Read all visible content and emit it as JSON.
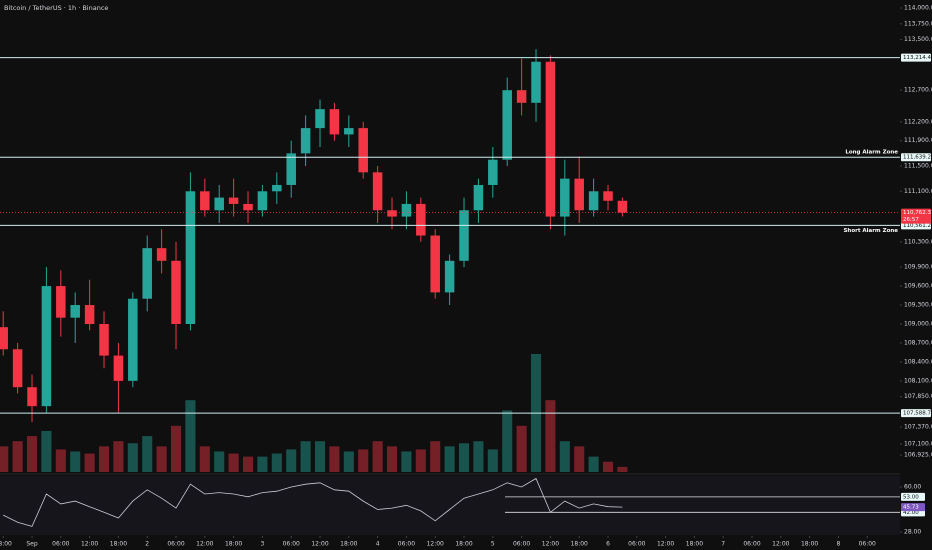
{
  "header": {
    "title": "Bitcoin / TetherUS · 1h · Binance"
  },
  "chart_data": {
    "type": "candlestick",
    "x": [
      -6,
      -3,
      0,
      3,
      6,
      9,
      12,
      15,
      18,
      21,
      24,
      27,
      30,
      33,
      36,
      39,
      42,
      45,
      48,
      51,
      54,
      57,
      60,
      63,
      66,
      69,
      72,
      75,
      78,
      81,
      84,
      87,
      90,
      93,
      96,
      99,
      102,
      105,
      108,
      111,
      114,
      117,
      120,
      123
    ],
    "open": [
      108950,
      108600,
      108000,
      107700,
      109600,
      109100,
      109300,
      109000,
      108500,
      108100,
      109400,
      110200,
      110000,
      109000,
      111100,
      110800,
      111000,
      110900,
      110800,
      111100,
      111200,
      111700,
      112100,
      112400,
      112000,
      112100,
      111400,
      110800,
      110700,
      110900,
      110400,
      109500,
      110000,
      110800,
      111200,
      111600,
      112700,
      112500,
      113150,
      110700,
      111300,
      110800,
      111100,
      110950
    ],
    "high": [
      109200,
      108700,
      108200,
      109900,
      109850,
      109500,
      109700,
      109200,
      108700,
      109500,
      110400,
      110500,
      110300,
      111400,
      111300,
      111200,
      111300,
      111100,
      111200,
      111400,
      111900,
      112300,
      112550,
      112500,
      112300,
      112200,
      111500,
      111000,
      111100,
      111000,
      110500,
      110100,
      111000,
      111300,
      111800,
      112900,
      113200,
      113350,
      113250,
      111600,
      111650,
      111300,
      111200,
      111000
    ],
    "low": [
      108500,
      107900,
      107450,
      107600,
      108800,
      108700,
      108900,
      108300,
      107600,
      108000,
      109200,
      109800,
      108600,
      108900,
      110700,
      110600,
      110700,
      110600,
      110700,
      110900,
      111000,
      111500,
      111800,
      111900,
      111800,
      111300,
      110600,
      110500,
      110500,
      110300,
      109400,
      109300,
      109900,
      110600,
      111000,
      111500,
      112300,
      112200,
      110500,
      110400,
      110600,
      110700,
      110800,
      110700
    ],
    "close": [
      108600,
      108000,
      107700,
      109600,
      109100,
      109300,
      109000,
      108500,
      108100,
      109400,
      110200,
      110000,
      109000,
      111100,
      110800,
      111000,
      110900,
      110800,
      111100,
      111200,
      111700,
      112100,
      112400,
      112000,
      112100,
      111400,
      110800,
      110700,
      110900,
      110400,
      109500,
      110000,
      110800,
      111200,
      111600,
      112700,
      112500,
      113150,
      110700,
      111300,
      110800,
      111100,
      110950,
      110762.31
    ],
    "volume": [
      25,
      30,
      35,
      40,
      22,
      20,
      18,
      25,
      30,
      28,
      35,
      25,
      45,
      70,
      25,
      20,
      18,
      15,
      15,
      18,
      22,
      30,
      30,
      25,
      20,
      22,
      30,
      25,
      20,
      22,
      30,
      25,
      28,
      30,
      22,
      60,
      45,
      115,
      70,
      30,
      25,
      15,
      10,
      5
    ],
    "up_color": "#26a69a",
    "down_color": "#f23645",
    "xlim": [
      -6.67,
      180.83
    ],
    "xticks": [
      {
        "value": -6,
        "label": "18:00"
      },
      {
        "value": 0,
        "label": "Sep"
      },
      {
        "value": 6,
        "label": "06:00"
      },
      {
        "value": 12,
        "label": "12:00"
      },
      {
        "value": 18,
        "label": "18:00"
      },
      {
        "value": 24,
        "label": "2"
      },
      {
        "value": 30,
        "label": "06:00"
      },
      {
        "value": 36,
        "label": "12:00"
      },
      {
        "value": 42,
        "label": "18:00"
      },
      {
        "value": 48,
        "label": "3"
      },
      {
        "value": 54,
        "label": "06:00"
      },
      {
        "value": 60,
        "label": "12:00"
      },
      {
        "value": 66,
        "label": "18:00"
      },
      {
        "value": 72,
        "label": "4"
      },
      {
        "value": 78,
        "label": "06:00"
      },
      {
        "value": 84,
        "label": "12:00"
      },
      {
        "value": 90,
        "label": "18:00"
      },
      {
        "value": 96,
        "label": "5"
      },
      {
        "value": 102,
        "label": "06:00"
      },
      {
        "value": 108,
        "label": "12:00"
      },
      {
        "value": 114,
        "label": "18:00"
      },
      {
        "value": 120,
        "label": "6"
      },
      {
        "value": 126,
        "label": "06:00"
      },
      {
        "value": 132,
        "label": "12:00"
      },
      {
        "value": 138,
        "label": "18:00"
      },
      {
        "value": 144,
        "label": "7"
      },
      {
        "value": 150,
        "label": "06:00"
      },
      {
        "value": 156,
        "label": "12:00"
      },
      {
        "value": 162,
        "label": "18:00"
      },
      {
        "value": 168,
        "label": "8"
      },
      {
        "value": 174,
        "label": "06:00"
      }
    ],
    "ylim": [
      106658,
      114127
    ],
    "yticks": [
      {
        "value": 114000,
        "label": "114,000.00"
      },
      {
        "value": 113750,
        "label": "113,750.00"
      },
      {
        "value": 113500,
        "label": "113,500.00"
      },
      {
        "value": 112700,
        "label": "112,700.00"
      },
      {
        "value": 112200,
        "label": "112,200.00"
      },
      {
        "value": 111900,
        "label": "111,900.00"
      },
      {
        "value": 111500,
        "label": "111,500.00"
      },
      {
        "value": 111100,
        "label": "111,100.00"
      },
      {
        "value": 110300,
        "label": "110,300.00"
      },
      {
        "value": 109900,
        "label": "109,900.00"
      },
      {
        "value": 109600,
        "label": "109,600.00"
      },
      {
        "value": 109300,
        "label": "109,300.00"
      },
      {
        "value": 109000,
        "label": "109,000.00"
      },
      {
        "value": 108700,
        "label": "108,700.00"
      },
      {
        "value": 108400,
        "label": "108,400.00"
      },
      {
        "value": 108100,
        "label": "108,100.00"
      },
      {
        "value": 107850,
        "label": "107,850.00"
      },
      {
        "value": 107370,
        "label": "107,370.00"
      },
      {
        "value": 107100,
        "label": "107,100.00"
      },
      {
        "value": 106925,
        "label": "106,925.00"
      }
    ],
    "levels": [
      {
        "value": 113214.44,
        "label": "113,214.44"
      },
      {
        "value": 111639.23,
        "label": "111,639.23",
        "name": "Long Alarm Zone"
      },
      {
        "value": 110561.23,
        "label": "110,561.23",
        "name": "Short Alarm Zone"
      },
      {
        "value": 107588.79,
        "label": "107,588.79"
      }
    ],
    "last_price": {
      "value": 110762.31,
      "label": "110,762.31",
      "countdown": "26:57"
    },
    "rsi": {
      "values": [
        40,
        35,
        32,
        55,
        48,
        50,
        46,
        42,
        38,
        50,
        58,
        52,
        45,
        62,
        55,
        56,
        55,
        53,
        56,
        57,
        60,
        62,
        63,
        58,
        57,
        50,
        44,
        45,
        47,
        43,
        36,
        44,
        52,
        55,
        58,
        63,
        60,
        66,
        42,
        50,
        45,
        48,
        46,
        45.73
      ],
      "color": "#c9ccd4",
      "ylim": [
        25.9,
        67.8
      ],
      "yticks": [
        {
          "value": 60,
          "label": "60.00"
        },
        {
          "value": 28,
          "label": "28.00"
        }
      ],
      "levels": [
        {
          "value": 53,
          "label": "53.00"
        },
        {
          "value": 42,
          "label": "42.00"
        }
      ],
      "last": {
        "value": 45.73,
        "label": "45.73"
      }
    }
  }
}
